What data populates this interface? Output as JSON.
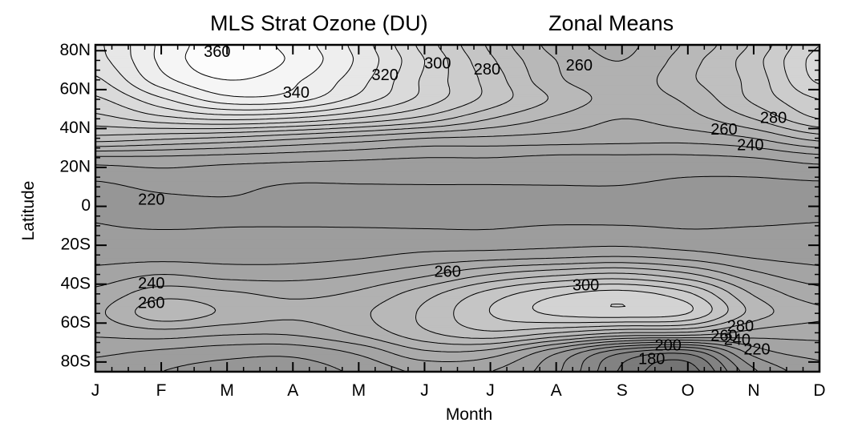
{
  "title": {
    "left": "MLS Strat Ozone (DU)",
    "right": "Zonal Means"
  },
  "chart_data": {
    "type": "heatmap",
    "title": "MLS Strat Ozone (DU)     Zonal Means",
    "xlabel": "Month",
    "ylabel": "Latitude",
    "x_ticks": [
      "J",
      "F",
      "M",
      "A",
      "M",
      "J",
      "J",
      "A",
      "S",
      "O",
      "N",
      "D"
    ],
    "y_ticks": [
      "80N",
      "60N",
      "40N",
      "20N",
      "0",
      "20S",
      "40S",
      "60S",
      "80S"
    ],
    "y_tick_values": [
      80,
      60,
      40,
      20,
      0,
      -20,
      -40,
      -60,
      -80
    ],
    "xlim": [
      0,
      11
    ],
    "ylim": [
      -85,
      83
    ],
    "contour_interval": 10,
    "grid": false,
    "contour_labels": [
      {
        "text": "360",
        "x": 1.85,
        "y": 79
      },
      {
        "text": "340",
        "x": 3.05,
        "y": 58
      },
      {
        "text": "320",
        "x": 4.4,
        "y": 67
      },
      {
        "text": "300",
        "x": 5.2,
        "y": 73
      },
      {
        "text": "280",
        "x": 5.95,
        "y": 70
      },
      {
        "text": "260",
        "x": 7.35,
        "y": 72
      },
      {
        "text": "280",
        "x": 10.3,
        "y": 45
      },
      {
        "text": "260",
        "x": 9.55,
        "y": 39
      },
      {
        "text": "240",
        "x": 9.95,
        "y": 31
      },
      {
        "text": "220",
        "x": 0.85,
        "y": 3
      },
      {
        "text": "240",
        "x": 0.85,
        "y": -40
      },
      {
        "text": "260",
        "x": 0.85,
        "y": -50
      },
      {
        "text": "260",
        "x": 5.35,
        "y": -34
      },
      {
        "text": "300",
        "x": 7.45,
        "y": -41
      },
      {
        "text": "280",
        "x": 9.8,
        "y": -62
      },
      {
        "text": "260",
        "x": 9.55,
        "y": -67
      },
      {
        "text": "240",
        "x": 9.75,
        "y": -69
      },
      {
        "text": "220",
        "x": 10.05,
        "y": -74
      },
      {
        "text": "200",
        "x": 8.7,
        "y": -72
      },
      {
        "text": "180",
        "x": 8.45,
        "y": -79
      }
    ],
    "grid_values": {
      "months": [
        0,
        1,
        2,
        3,
        4,
        5,
        6,
        7,
        8,
        9,
        10,
        11
      ],
      "latitudes": [
        -85,
        -75,
        -65,
        -55,
        -45,
        -35,
        -25,
        -15,
        -5,
        5,
        15,
        25,
        35,
        45,
        55,
        65,
        75,
        83
      ],
      "rows": [
        [
          226,
          220,
          216,
          215,
          222,
          232,
          230,
          212,
          178,
          165,
          208,
          226
        ],
        [
          232,
          228,
          224,
          223,
          232,
          248,
          246,
          222,
          192,
          184,
          224,
          234
        ],
        [
          242,
          246,
          242,
          242,
          252,
          268,
          278,
          270,
          260,
          258,
          246,
          244
        ],
        [
          248,
          266,
          258,
          252,
          258,
          272,
          290,
          302,
          306,
          300,
          266,
          252
        ],
        [
          243,
          256,
          252,
          248,
          252,
          266,
          284,
          298,
          304,
          292,
          259,
          244
        ],
        [
          234,
          240,
          236,
          236,
          240,
          248,
          260,
          268,
          272,
          262,
          243,
          234
        ],
        [
          226,
          226,
          226,
          226,
          228,
          232,
          234,
          236,
          238,
          234,
          228,
          226
        ],
        [
          222,
          222,
          222,
          222,
          222,
          222,
          222,
          224,
          224,
          222,
          222,
          222
        ],
        [
          219,
          216,
          218,
          218,
          218,
          218,
          218,
          218,
          218,
          218,
          218,
          219
        ],
        [
          216,
          219,
          220,
          218,
          218,
          218,
          218,
          218,
          218,
          216,
          214,
          215
        ],
        [
          222,
          226,
          224,
          222,
          222,
          222,
          222,
          222,
          222,
          220,
          220,
          222
        ],
        [
          238,
          238,
          236,
          234,
          232,
          230,
          230,
          228,
          228,
          228,
          230,
          236
        ],
        [
          276,
          272,
          268,
          262,
          256,
          250,
          248,
          246,
          244,
          244,
          250,
          264
        ],
        [
          296,
          306,
          312,
          308,
          298,
          286,
          270,
          258,
          250,
          256,
          270,
          290
        ],
        [
          308,
          328,
          346,
          344,
          326,
          306,
          286,
          268,
          256,
          262,
          282,
          300
        ],
        [
          318,
          346,
          360,
          352,
          334,
          308,
          286,
          262,
          254,
          268,
          284,
          312
        ],
        [
          326,
          352,
          368,
          358,
          338,
          310,
          282,
          260,
          250,
          266,
          286,
          314
        ],
        [
          328,
          352,
          366,
          356,
          336,
          306,
          278,
          256,
          248,
          262,
          282,
          310
        ]
      ]
    }
  }
}
